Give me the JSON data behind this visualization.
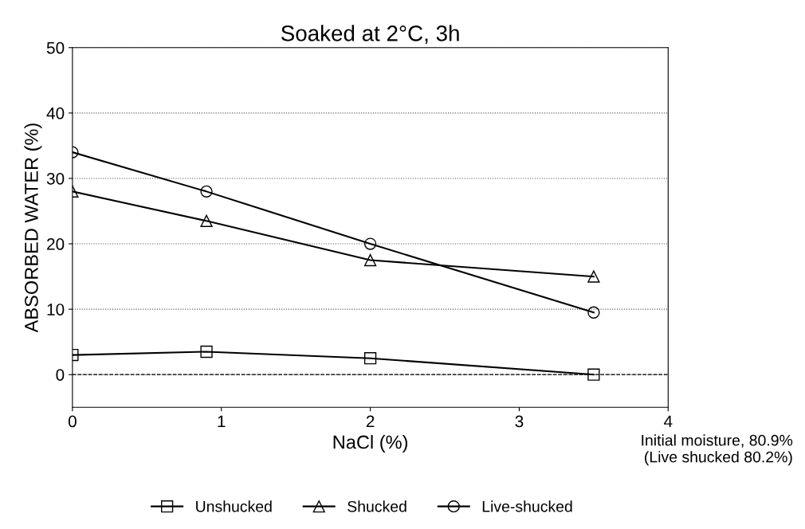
{
  "chart_data": {
    "type": "line",
    "title": "Soaked at 2°C, 3h",
    "xlabel": "NaCl (%)",
    "ylabel": "ABSORBED WATER (%)",
    "x": [
      0,
      0.9,
      2,
      3.5
    ],
    "series": [
      {
        "name": "Unshucked",
        "color": "#000000",
        "marker": "square",
        "values": [
          3,
          3.5,
          2.5,
          0
        ]
      },
      {
        "name": "Shucked",
        "color": "#000000",
        "marker": "triangle",
        "values": [
          28,
          23.5,
          17.5,
          15
        ]
      },
      {
        "name": "Live-shucked",
        "color": "#000000",
        "marker": "circle",
        "values": [
          34,
          28,
          20,
          9.5
        ]
      }
    ],
    "xlim": [
      0,
      4
    ],
    "xticks": [
      0,
      1,
      2,
      3,
      4
    ],
    "ylim": [
      -5,
      50
    ],
    "yticks": [
      0,
      10,
      20,
      30,
      40,
      50
    ],
    "grid": "y",
    "legend": "bottom",
    "line_style": "solid",
    "ref_lines": [
      {
        "axis": "y",
        "value": 0,
        "label": null,
        "line_style": "dashed",
        "color": "#000000"
      }
    ],
    "annotations": [
      "Initial moisture, 80.9%\n(Live shucked 80.2%)"
    ]
  }
}
